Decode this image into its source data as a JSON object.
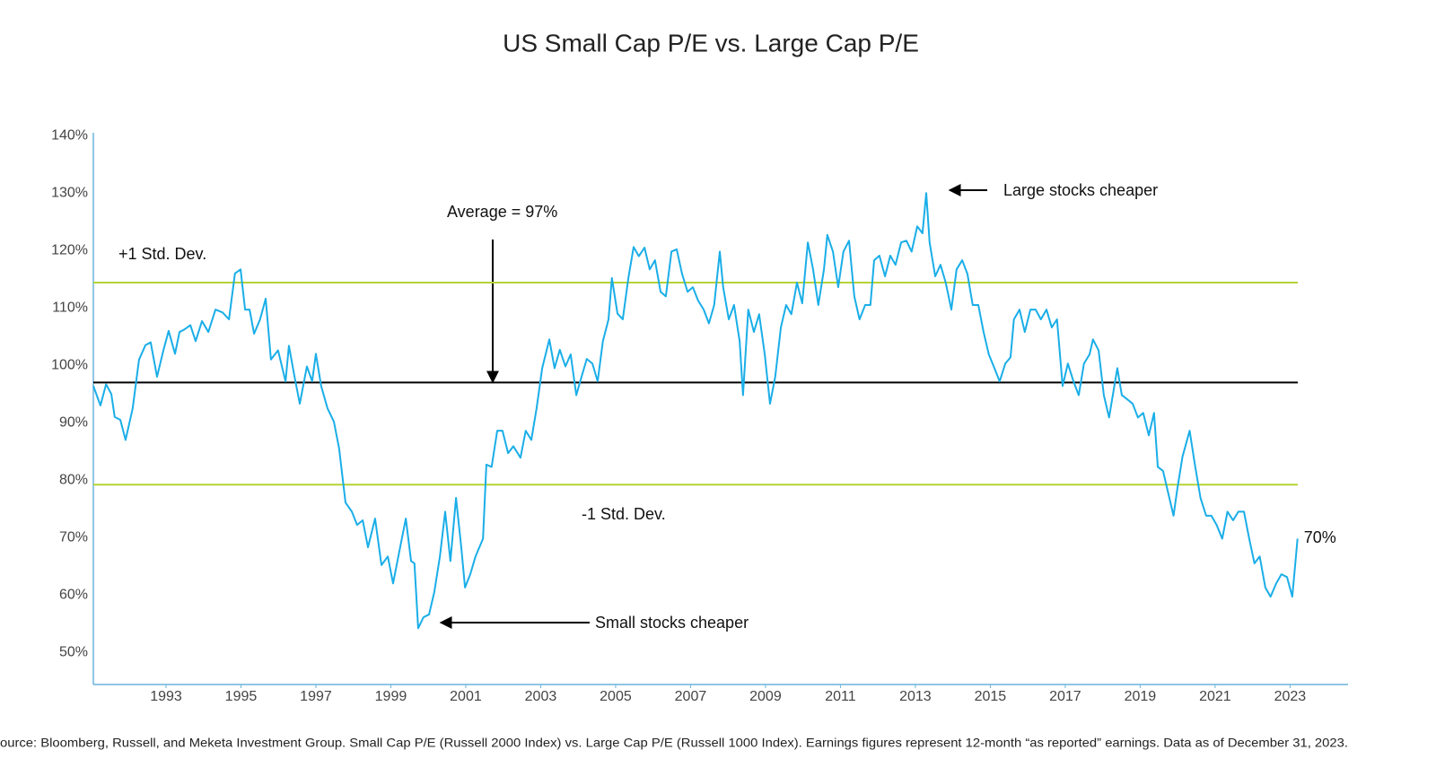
{
  "chart_data": {
    "type": "line",
    "title": "US Small Cap P/E vs. Large Cap P/E",
    "source": "ource: Bloomberg, Russell, and Meketa Investment Group. Small Cap P/E (Russell 2000 Index) vs. Large Cap P/E (Russell 1000 Index). Earnings figures represent 12-month “as reported” earnings. Data as of December 31, 2023.",
    "color": "#1aaee8",
    "x": [
      1991.06,
      1991.25,
      1991.4,
      1991.54,
      1991.63,
      1991.78,
      1991.92,
      1992.11,
      1992.28,
      1992.45,
      1992.59,
      1992.76,
      1992.93,
      1993.07,
      1993.24,
      1993.36,
      1993.48,
      1993.65,
      1993.79,
      1993.96,
      1994.13,
      1994.32,
      1994.51,
      1994.68,
      1994.84,
      1994.99,
      1995.11,
      1995.23,
      1995.35,
      1995.51,
      1995.66,
      1995.8,
      1995.99,
      1996.19,
      1996.28,
      1996.43,
      1996.57,
      1996.76,
      1996.9,
      1997.0,
      1997.14,
      1997.31,
      1997.48,
      1997.62,
      1997.79,
      1997.96,
      1998.1,
      1998.25,
      1998.39,
      1998.58,
      1998.75,
      1998.92,
      1999.06,
      1999.2,
      1999.4,
      1999.54,
      1999.63,
      1999.73,
      1999.87,
      2000.02,
      2000.16,
      2000.31,
      2000.45,
      2000.59,
      2000.74,
      2000.88,
      2000.98,
      2001.12,
      2001.26,
      2001.46,
      2001.55,
      2001.69,
      2001.84,
      2001.98,
      2002.13,
      2002.27,
      2002.46,
      2002.6,
      2002.75,
      2002.89,
      2003.04,
      2003.23,
      2003.37,
      2003.51,
      2003.66,
      2003.8,
      2003.95,
      2004.09,
      2004.23,
      2004.38,
      2004.52,
      2004.66,
      2004.81,
      2004.9,
      2005.05,
      2005.19,
      2005.34,
      2005.48,
      2005.62,
      2005.77,
      2005.91,
      2006.05,
      2006.2,
      2006.34,
      2006.49,
      2006.63,
      2006.77,
      2006.92,
      2007.06,
      2007.2,
      2007.35,
      2007.49,
      2007.63,
      2007.78,
      2007.87,
      2008.02,
      2008.16,
      2008.31,
      2008.4,
      2008.54,
      2008.69,
      2008.83,
      2008.98,
      2009.12,
      2009.26,
      2009.41,
      2009.55,
      2009.69,
      2009.84,
      2009.98,
      2010.13,
      2010.27,
      2010.41,
      2010.56,
      2010.65,
      2010.8,
      2010.94,
      2011.08,
      2011.23,
      2011.37,
      2011.51,
      2011.66,
      2011.8,
      2011.9,
      2012.04,
      2012.19,
      2012.33,
      2012.47,
      2012.62,
      2012.76,
      2012.9,
      2013.05,
      2013.19,
      2013.29,
      2013.38,
      2013.53,
      2013.67,
      2013.81,
      2013.96,
      2014.1,
      2014.25,
      2014.39,
      2014.53,
      2014.68,
      2014.82,
      2014.96,
      2015.11,
      2015.25,
      2015.4,
      2015.54,
      2015.63,
      2015.78,
      2015.92,
      2016.07,
      2016.21,
      2016.35,
      2016.5,
      2016.64,
      2016.78,
      2016.93,
      2017.07,
      2017.22,
      2017.36,
      2017.5,
      2017.65,
      2017.74,
      2017.89,
      2018.03,
      2018.17,
      2018.27,
      2018.39,
      2018.51,
      2018.65,
      2018.8,
      2018.94,
      2019.08,
      2019.23,
      2019.37,
      2019.47,
      2019.61,
      2019.75,
      2019.89,
      2019.99,
      2020.13,
      2020.32,
      2020.47,
      2020.61,
      2020.76,
      2020.9,
      2021.04,
      2021.19,
      2021.33,
      2021.48,
      2021.62,
      2021.77,
      2021.91,
      2022.05,
      2022.19,
      2022.34,
      2022.48,
      2022.63,
      2022.77,
      2022.92,
      2023.06,
      2023.2
    ],
    "values": [
      96.4,
      93,
      96.7,
      95,
      91,
      90.5,
      87,
      92.5,
      101,
      103.5,
      104,
      98,
      102.6,
      106,
      102,
      105.8,
      106.2,
      107,
      104.2,
      107.7,
      105.8,
      109.7,
      109.2,
      108,
      116,
      116.7,
      109.7,
      109.7,
      105.5,
      108,
      111.6,
      101,
      102.6,
      97.2,
      103.4,
      98,
      93.3,
      99.8,
      97.2,
      102,
      96.4,
      92.5,
      90.2,
      85.5,
      76.1,
      74.5,
      72.2,
      73,
      68.3,
      73.3,
      65.2,
      66.7,
      62,
      66.7,
      73.3,
      65.9,
      65.5,
      54.2,
      56.1,
      56.6,
      60.5,
      66.7,
      74.5,
      65.9,
      76.9,
      68.3,
      61.3,
      63.6,
      66.7,
      69.8,
      82.7,
      82.3,
      88.6,
      88.6,
      84.7,
      85.9,
      83.9,
      88.6,
      87,
      92.5,
      99.5,
      104.5,
      99.5,
      102.7,
      99.8,
      101.9,
      94.8,
      98,
      101.1,
      100.3,
      97.2,
      104.2,
      108,
      115.2,
      109,
      108,
      115.2,
      120.6,
      119,
      120.5,
      116.7,
      118.3,
      112.8,
      112,
      119.8,
      120.2,
      116,
      112.8,
      113.6,
      111.3,
      109.7,
      107.3,
      110.5,
      119.8,
      113.6,
      108,
      110.5,
      104.2,
      94.8,
      109.7,
      105.8,
      108.9,
      101.9,
      93.3,
      98,
      106.6,
      110.5,
      108.9,
      114.4,
      110.8,
      121.4,
      116.7,
      110.5,
      116.7,
      122.7,
      119.8,
      113.6,
      119.8,
      121.7,
      112,
      108,
      110.5,
      110.5,
      118.3,
      119.1,
      115.5,
      119.1,
      117.5,
      121.4,
      121.7,
      119.8,
      124.2,
      123,
      130,
      121.4,
      115.5,
      117.5,
      114.4,
      109.7,
      116.7,
      118.3,
      115.9,
      110.5,
      110.5,
      105.8,
      101.9,
      99.5,
      97.2,
      100.3,
      101.4,
      108,
      109.7,
      105.8,
      109.7,
      109.7,
      108,
      109.7,
      106.6,
      108,
      96.4,
      100.3,
      97.2,
      94.8,
      100.3,
      101.9,
      104.5,
      102.6,
      94.8,
      90.9,
      94.8,
      99.5,
      94.8,
      94.1,
      93.3,
      90.9,
      91.7,
      87.8,
      91.7,
      82.3,
      81.6,
      77.7,
      73.8,
      78.4,
      84.1,
      88.6,
      82.3,
      76.9,
      73.8,
      73.8,
      72.2,
      69.8,
      74.5,
      73,
      74.5,
      74.5,
      69.8,
      65.5,
      66.7,
      61.3,
      59.7,
      62,
      63.6,
      63.1,
      59.7,
      69.8
    ],
    "end_label": "70%",
    "xlim": [
      1991.06,
      2024.5
    ],
    "xticks": [
      1993,
      1995,
      1997,
      1999,
      2001,
      2003,
      2005,
      2007,
      2009,
      2011,
      2013,
      2015,
      2017,
      2019,
      2021,
      2023
    ],
    "ylim": [
      44.4,
      140.5
    ],
    "yticks": [
      {
        "value": 50,
        "label": "50%"
      },
      {
        "value": 60,
        "label": "60%"
      },
      {
        "value": 70,
        "label": "70%"
      },
      {
        "value": 80,
        "label": "80%"
      },
      {
        "value": 90,
        "label": "90%"
      },
      {
        "value": 100,
        "label": "100%"
      },
      {
        "value": 110,
        "label": "110%"
      },
      {
        "value": 120,
        "label": "120%"
      },
      {
        "value": 130,
        "label": "130%"
      },
      {
        "value": 140,
        "label": "140%"
      }
    ],
    "grid": false,
    "reference_lines": [
      {
        "label": "+1 Std. Dev.",
        "value": 114.4,
        "color": "#b5d334"
      },
      {
        "label": "Average = 97%",
        "value": 97,
        "color": "#000000"
      },
      {
        "label": "-1 Std. Dev.",
        "value": 79.2,
        "color": "#b5d334"
      }
    ],
    "annotations": [
      "Large stocks cheaper",
      "Small stocks cheaper"
    ]
  }
}
